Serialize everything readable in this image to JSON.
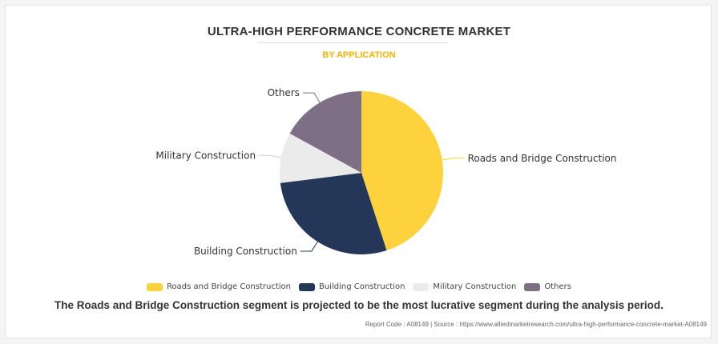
{
  "header": {
    "title": "ULTRA-HIGH PERFORMANCE CONCRETE MARKET",
    "subtitle": "BY APPLICATION"
  },
  "chart_data": {
    "type": "pie",
    "title": "ULTRA-HIGH PERFORMANCE CONCRETE MARKET",
    "subtitle": "BY APPLICATION",
    "legend_position": "bottom",
    "slices": [
      {
        "name": "Roads and Bridge Construction",
        "value": 45,
        "color": "#fdd23c"
      },
      {
        "name": "Building Construction",
        "value": 28,
        "color": "#253758"
      },
      {
        "name": "Military Construction",
        "value": 10,
        "color": "#ebebeb"
      },
      {
        "name": "Others",
        "value": 17,
        "color": "#7e6f86"
      }
    ]
  },
  "footer": {
    "summary": "The Roads and Bridge Construction segment is projected to be the most lucrative segment during the analysis period.",
    "source": "Report Code : A08149  |  Source : https://www.alliedmarketresearch.com/ultra-high-performance-concrete-market-A08149"
  }
}
